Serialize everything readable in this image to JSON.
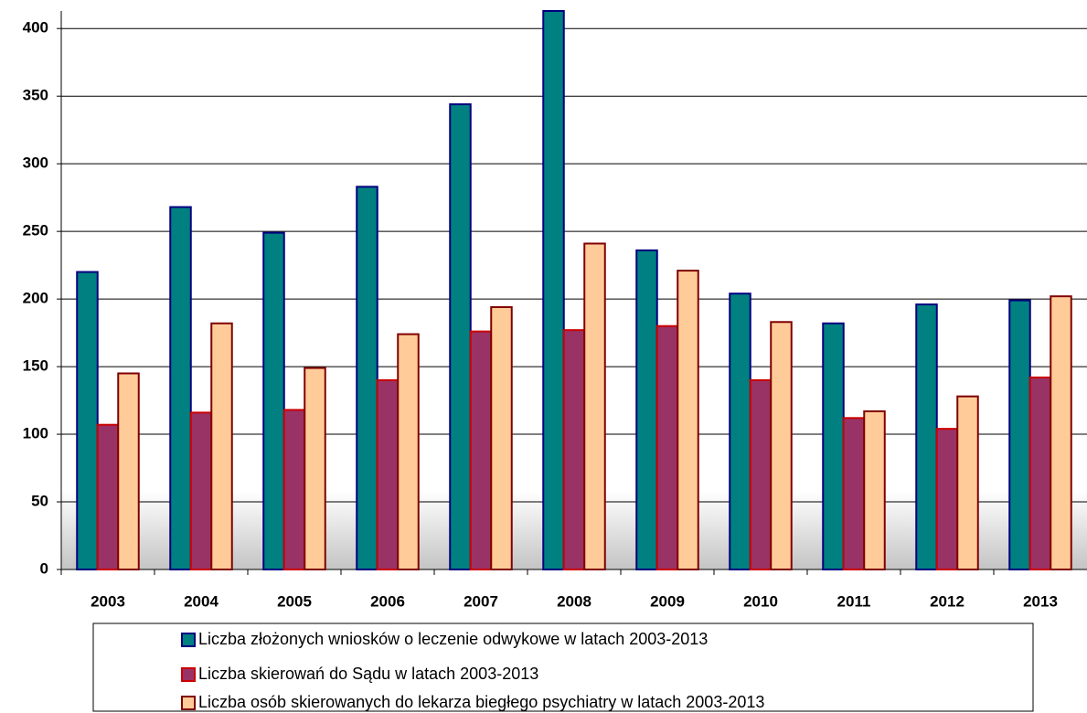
{
  "chart_data": {
    "type": "bar",
    "categories": [
      "2003",
      "2004",
      "2005",
      "2006",
      "2007",
      "2008",
      "2009",
      "2010",
      "2011",
      "2012",
      "2013"
    ],
    "series": [
      {
        "name": "Liczba złożonych wniosków o leczenie odwykowe w latach 2003-2013",
        "color": "#008080",
        "edgecolor": "#000080",
        "values": [
          220,
          268,
          249,
          283,
          344,
          413,
          236,
          204,
          182,
          196,
          199
        ]
      },
      {
        "name": "Liczba skierowań do Sądu w latach 2003-2013",
        "color": "#993366",
        "edgecolor": "#cc0000",
        "values": [
          107,
          116,
          118,
          140,
          176,
          177,
          180,
          140,
          112,
          104,
          142
        ]
      },
      {
        "name": "Liczba osób skierowanych do lekarza biegłego psychiatry w latach 2003-2013",
        "color": "#ffcc99",
        "edgecolor": "#800000",
        "values": [
          145,
          182,
          149,
          174,
          194,
          241,
          221,
          183,
          117,
          128,
          202
        ]
      }
    ],
    "ylim": [
      0,
      413
    ],
    "yticks": [
      0,
      50,
      100,
      150,
      200,
      250,
      300,
      350,
      400
    ],
    "grid": true,
    "legend": "bottom"
  }
}
